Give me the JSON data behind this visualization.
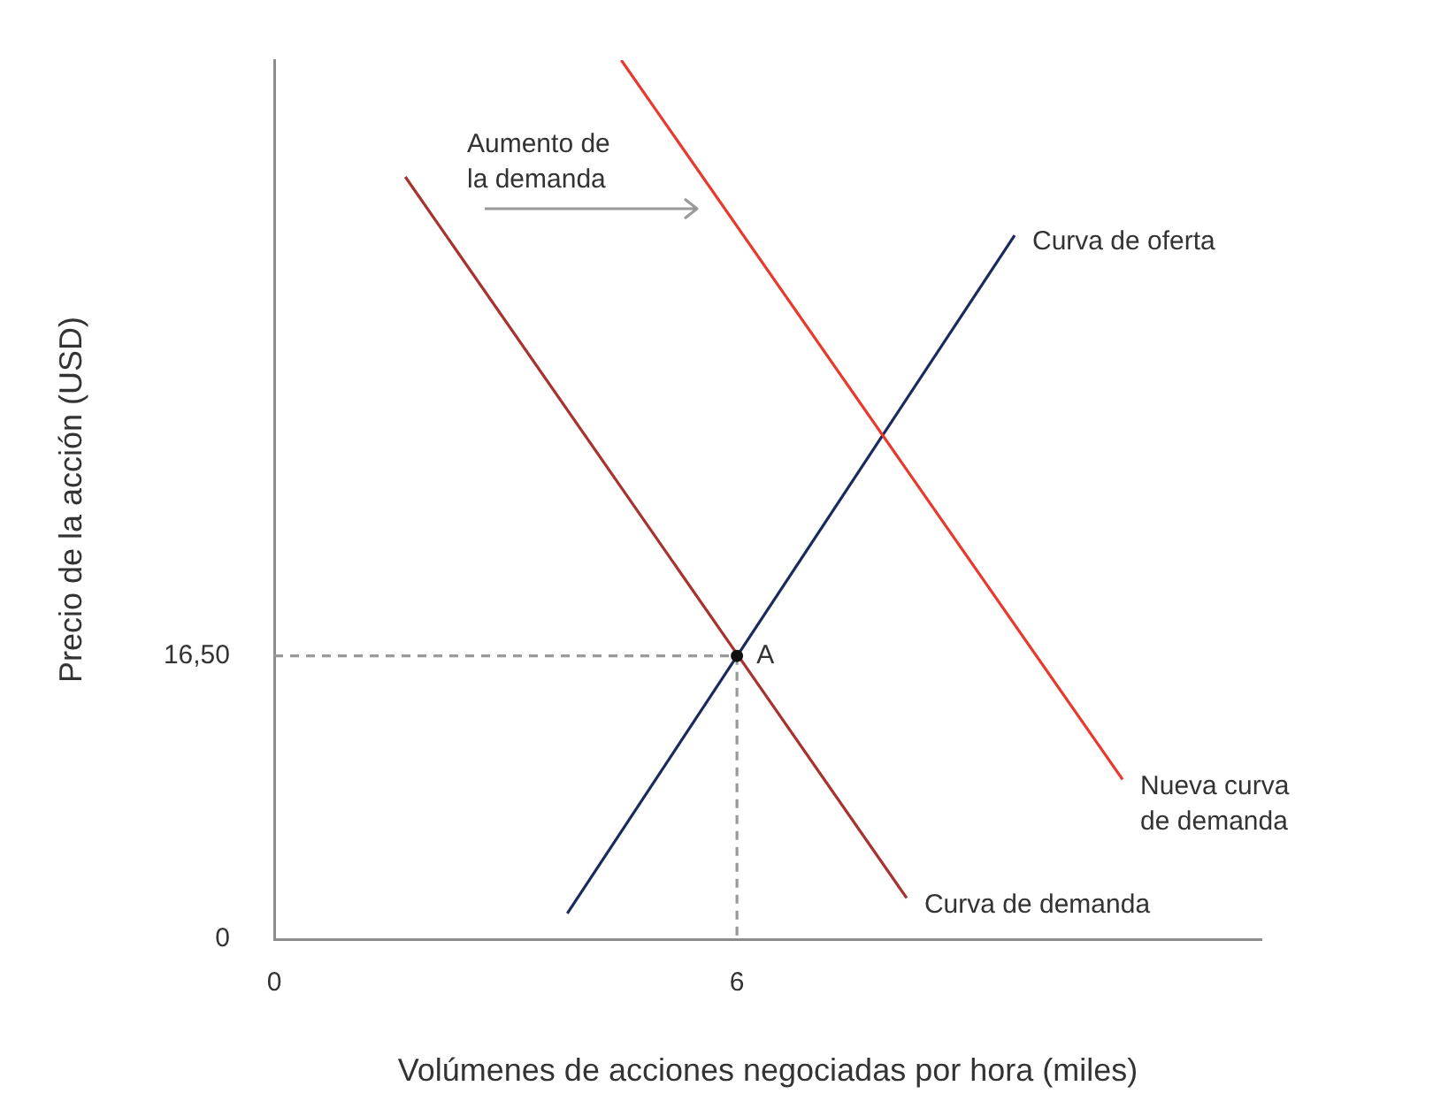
{
  "chart_data": {
    "type": "line",
    "xlabel": "Volúmenes de acciones negociadas por hora (miles)",
    "ylabel": "Precio de la acción (USD)",
    "xlim": [
      0,
      12.8
    ],
    "ylim": [
      0,
      51.2
    ],
    "xticks": [
      0,
      6
    ],
    "yticks": [
      0,
      {
        "value": 16.5,
        "label": "16,50"
      }
    ],
    "grid": false,
    "legend": false,
    "marker": "none",
    "line_style": "solid",
    "series": [
      {
        "name": "Curva de oferta",
        "color": "#1b2a5c",
        "x": [
          3.8,
          9.6
        ],
        "values": [
          1.5,
          41.0
        ]
      },
      {
        "name": "Curva de demanda",
        "color": "#a8322d",
        "x": [
          1.7,
          8.2
        ],
        "values": [
          44.4,
          2.4
        ]
      },
      {
        "name": "Nueva curva de demanda",
        "color": "#e8392c",
        "x": [
          4.5,
          11.0
        ],
        "values": [
          51.2,
          9.3
        ]
      },
      {
        "type": "line",
        "color": "#999999",
        "line_style": "dashed",
        "x": [
          0,
          6
        ],
        "values": [
          16.5,
          16.5
        ]
      },
      {
        "type": "line",
        "color": "#999999",
        "line_style": "dashed",
        "x": [
          6,
          6
        ],
        "values": [
          16.5,
          0
        ]
      },
      {
        "type": "scatter",
        "color": "#111111",
        "marker": "circle",
        "x": [
          6
        ],
        "values": [
          16.5
        ]
      }
    ],
    "annotations": [
      {
        "text": "A",
        "x": 6,
        "y": 16.5
      },
      "Aumento de la demanda"
    ]
  }
}
